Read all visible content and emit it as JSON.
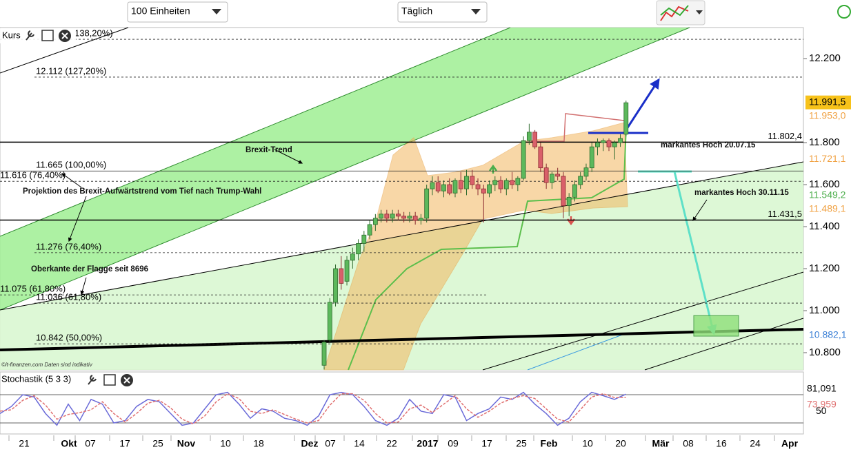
{
  "toolbar": {
    "units": "100 Einheiten",
    "interval": "Täglich"
  },
  "x_axis": {
    "labels": [
      "21",
      "Okt",
      "07",
      "17",
      "25",
      "Nov",
      "10",
      "18",
      "Dez",
      "07",
      "14",
      "22",
      "2017",
      "09",
      "17",
      "25",
      "Feb",
      "10",
      "20",
      "Mär",
      "08",
      "16",
      "24",
      "Apr"
    ]
  },
  "chart_data": [
    {
      "type": "candlestick",
      "label": "Kurs",
      "ylim": [
        10.718,
        12.348
      ],
      "yticks": [
        {
          "value": 12.2,
          "label": "12.200"
        },
        {
          "value": 11.8,
          "label": "11.800"
        },
        {
          "value": 11.6,
          "label": "11.600"
        },
        {
          "value": 11.4,
          "label": "11.400"
        },
        {
          "value": 11.2,
          "label": "11.200"
        },
        {
          "value": 11,
          "label": "11.000"
        },
        {
          "value": 10.8,
          "label": "10.800"
        }
      ],
      "up_color": "#5cb85c",
      "down_color": "#d9606a",
      "open": [
        10.74,
        10.86,
        11.04,
        11.2,
        11.14,
        11.24,
        11.27,
        11.32,
        11.36,
        11.41,
        11.44,
        11.46,
        11.44,
        11.46,
        11.45,
        11.44,
        11.45,
        11.43,
        11.44,
        11.58,
        11.61,
        11.57,
        11.6,
        11.56,
        11.62,
        11.58,
        11.64,
        11.6,
        11.58,
        11.56,
        11.6,
        11.62,
        11.58,
        11.62,
        11.6,
        11.63,
        11.81,
        11.85,
        11.78,
        11.68,
        11.61,
        11.65,
        11.64,
        11.5,
        11.54,
        11.6,
        11.64,
        11.68,
        11.78,
        11.8,
        11.81,
        11.78,
        11.8,
        11.84
      ],
      "high": [
        10.86,
        11.06,
        11.22,
        11.26,
        11.26,
        11.3,
        11.34,
        11.38,
        11.43,
        11.46,
        11.48,
        11.48,
        11.48,
        11.48,
        11.47,
        11.47,
        11.47,
        11.46,
        11.6,
        11.64,
        11.64,
        11.62,
        11.63,
        11.63,
        11.66,
        11.67,
        11.67,
        11.63,
        11.6,
        11.62,
        11.64,
        11.64,
        11.63,
        11.66,
        11.64,
        11.83,
        11.89,
        11.86,
        11.8,
        11.7,
        11.66,
        11.68,
        11.66,
        11.56,
        11.62,
        11.66,
        11.7,
        11.8,
        11.82,
        11.82,
        11.82,
        11.81,
        11.84,
        12.0
      ],
      "low": [
        10.72,
        10.85,
        11.02,
        11.1,
        11.12,
        11.2,
        11.24,
        11.28,
        11.34,
        11.38,
        11.42,
        11.42,
        11.42,
        11.43,
        11.42,
        11.42,
        11.41,
        11.41,
        11.42,
        11.55,
        11.56,
        11.54,
        11.55,
        11.54,
        11.56,
        11.55,
        11.58,
        11.55,
        11.42,
        11.54,
        11.57,
        11.56,
        11.55,
        11.58,
        11.57,
        11.62,
        11.79,
        11.77,
        11.66,
        11.58,
        11.58,
        11.62,
        11.44,
        11.45,
        11.52,
        11.58,
        11.62,
        11.66,
        11.74,
        11.76,
        11.76,
        11.72,
        11.78,
        11.83
      ],
      "close": [
        10.85,
        11.04,
        11.2,
        11.13,
        11.24,
        11.27,
        11.32,
        11.36,
        11.41,
        11.44,
        11.46,
        11.44,
        11.46,
        11.45,
        11.44,
        11.45,
        11.43,
        11.44,
        11.58,
        11.61,
        11.57,
        11.6,
        11.56,
        11.62,
        11.58,
        11.64,
        11.6,
        11.58,
        11.56,
        11.6,
        11.62,
        11.58,
        11.62,
        11.6,
        11.63,
        11.81,
        11.85,
        11.78,
        11.68,
        11.61,
        11.65,
        11.64,
        11.5,
        11.54,
        11.6,
        11.64,
        11.68,
        11.78,
        11.8,
        11.81,
        11.78,
        11.8,
        11.82,
        11.99
      ],
      "levels": [
        {
          "value": 12.292,
          "label": "138,20%)"
        },
        {
          "value": 12.112,
          "label": "12.112 (127,20%)"
        },
        {
          "value": 11.665,
          "label": "11.665 (100,00%)"
        },
        {
          "value": 11.616,
          "label": "11.616 (76,40%)"
        },
        {
          "value": 11.276,
          "label": "11.276 (76,40%)"
        },
        {
          "value": 11.075,
          "label": "11.075 (61,80%)"
        },
        {
          "value": 11.036,
          "label": "11.036 (61,80%)"
        },
        {
          "value": 10.842,
          "label": "10.842 (50,00%)"
        }
      ],
      "lines": [
        {
          "value": 11.8024,
          "label": "11.802,4"
        },
        {
          "value": 11.4315,
          "label": "11.431,5"
        }
      ],
      "price_labels": [
        {
          "value": 11.9915,
          "label": "11.991,5",
          "color": "#000000",
          "background": "#f7c21a"
        },
        {
          "value": 11.953,
          "label": "11.953,0",
          "color": "#f0a040"
        },
        {
          "value": 11.7211,
          "label": "11.721,1",
          "color": "#f0a040"
        },
        {
          "value": 11.5492,
          "label": "11.549,2",
          "color": "#4cae4c"
        },
        {
          "value": 11.4891,
          "label": "11.489,1",
          "color": "#f0a040"
        },
        {
          "value": 10.8821,
          "label": "10.882,1",
          "color": "#3a7fd5"
        }
      ],
      "annotations": [
        "Brexit-Trend",
        "Projektion des  Brexit-Aufwärtstrend vom Tief nach Trump-Wahl",
        "Oberkante der Flagge seit 8696",
        "markantes Hoch 20.07.15",
        "markantes Hoch 30.11.15"
      ],
      "source": "©it-finanzen.com  Daten sind indikativ"
    },
    {
      "type": "line",
      "label": "Stochastik (5 3 3)",
      "ylim": [
        -3.4,
        128.3
      ],
      "yticks": [
        50
      ],
      "hlines": [
        80,
        20
      ],
      "series": [
        {
          "color": "#6a6ad8",
          "last_label": "81,091",
          "values": [
            40,
            55,
            80,
            75,
            40,
            15,
            60,
            25,
            70,
            60,
            20,
            25,
            55,
            70,
            65,
            40,
            15,
            20,
            50,
            80,
            85,
            60,
            30,
            50,
            45,
            30,
            25,
            15,
            35,
            80,
            85,
            80,
            55,
            25,
            15,
            30,
            70,
            45,
            40,
            80,
            75,
            25,
            40,
            50,
            75,
            70,
            85,
            60,
            40,
            15,
            30,
            65,
            85,
            78,
            70,
            81.091
          ]
        },
        {
          "color": "#e07070",
          "last_label": "73,959",
          "values": [
            45,
            48,
            68,
            78,
            58,
            28,
            38,
            42,
            48,
            65,
            40,
            22,
            40,
            62,
            68,
            52,
            28,
            18,
            35,
            65,
            82,
            72,
            45,
            40,
            48,
            38,
            28,
            20,
            25,
            58,
            82,
            82,
            68,
            40,
            20,
            22,
            50,
            58,
            42,
            60,
            78,
            50,
            32,
            45,
            62,
            72,
            78,
            72,
            50,
            28,
            22,
            48,
            75,
            82,
            74,
            73.959
          ]
        }
      ]
    }
  ]
}
